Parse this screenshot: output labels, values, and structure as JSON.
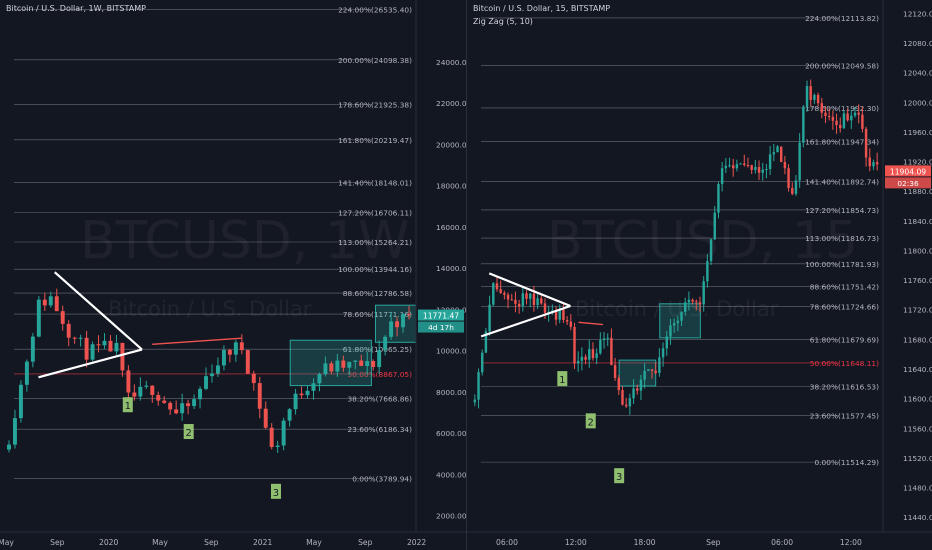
{
  "chart_data": [
    {
      "type": "candlestick",
      "title": "Bitcoin / U.S. Dollar, 1W, BITSTAMP",
      "watermark": "BTCUSD, 1W",
      "watermark_sub": "Bitcoin / U.S. Dollar",
      "yaxis": {
        "ticks": [
          "2000.00",
          "4000.00",
          "6000.00",
          "8000.00",
          "10000.00",
          "12000.00",
          "14000.00",
          "16000.00",
          "18000.00",
          "20000.00",
          "22000.00",
          "24000.00"
        ],
        "tick_values": [
          2000,
          4000,
          6000,
          8000,
          10000,
          12000,
          14000,
          16000,
          18000,
          20000,
          22000,
          24000
        ],
        "range": [
          1200,
          27000
        ]
      },
      "xaxis": {
        "ticks": [
          "May",
          "Sep",
          "2020",
          "May",
          "Sep",
          "2021",
          "May",
          "Sep",
          "2022"
        ]
      },
      "fib_levels": [
        {
          "label": "224.00%(26535.40)",
          "value": 26535.4,
          "color": "#b2b5be"
        },
        {
          "label": "200.00%(24098.38)",
          "value": 24098.38,
          "color": "#b2b5be"
        },
        {
          "label": "178.60%(21925.38)",
          "value": 21925.38,
          "color": "#b2b5be"
        },
        {
          "label": "161.80%(20219.47)",
          "value": 20219.47,
          "color": "#b2b5be"
        },
        {
          "label": "141.40%(18148.01)",
          "value": 18148.01,
          "color": "#b2b5be"
        },
        {
          "label": "127.20%(16706.11)",
          "value": 16706.11,
          "color": "#b2b5be"
        },
        {
          "label": "113.00%(15264.21)",
          "value": 15264.21,
          "color": "#b2b5be"
        },
        {
          "label": "100.00%(13944.16)",
          "value": 13944.16,
          "color": "#b2b5be"
        },
        {
          "label": "88.60%(12786.58)",
          "value": 12786.58,
          "color": "#b2b5be"
        },
        {
          "label": "78.60%(11771.16)",
          "value": 11771.16,
          "color": "#b2b5be"
        },
        {
          "label": "61.80%(10065.25)",
          "value": 10065.25,
          "color": "#b2b5be"
        },
        {
          "label": "50.00%(8867.05)",
          "value": 8867.05,
          "color": "#f23645"
        },
        {
          "label": "38.20%(7668.86)",
          "value": 7668.86,
          "color": "#b2b5be"
        },
        {
          "label": "23.60%(6186.34)",
          "value": 6186.34,
          "color": "#b2b5be"
        },
        {
          "label": "0.00%(3789.94)",
          "value": 3789.94,
          "color": "#b2b5be"
        }
      ],
      "price_label": "11771.47",
      "countdown_label": "4d 17h",
      "wave_labels": [
        "1",
        "2",
        "3"
      ],
      "wave_positions": [
        [
          0.3,
          7300
        ],
        [
          0.45,
          6000
        ],
        [
          0.665,
          3100
        ]
      ],
      "triangle": [
        [
          0.12,
          13800
        ],
        [
          0.08,
          8700
        ],
        [
          0.335,
          10050
        ]
      ],
      "resistance_line": [
        [
          0.36,
          10300
        ],
        [
          0.58,
          10600
        ]
      ],
      "boxes": [
        [
          0.7,
          0.9,
          8300,
          10500
        ],
        [
          0.91,
          1.07,
          10400,
          12200
        ]
      ],
      "candles": {
        "seed": 11,
        "path": [
          [
            0,
            5200
          ],
          [
            0.04,
            8600
          ],
          [
            0.08,
            12200
          ],
          [
            0.11,
            12600
          ],
          [
            0.16,
            10800
          ],
          [
            0.2,
            9900
          ],
          [
            0.27,
            10200
          ],
          [
            0.3,
            7600
          ],
          [
            0.36,
            8200
          ],
          [
            0.42,
            6900
          ],
          [
            0.46,
            7400
          ],
          [
            0.5,
            9000
          ],
          [
            0.55,
            10000
          ],
          [
            0.58,
            10200
          ],
          [
            0.61,
            8400
          ],
          [
            0.635,
            6600
          ],
          [
            0.66,
            4800
          ],
          [
            0.68,
            6500
          ],
          [
            0.72,
            7900
          ],
          [
            0.78,
            9100
          ],
          [
            0.86,
            9300
          ],
          [
            0.9,
            9200
          ],
          [
            0.95,
            11400
          ],
          [
            1.0,
            11600
          ]
        ],
        "count": 68,
        "x_range": [
          0.0,
          1.0
        ]
      },
      "colors": {
        "up": "#26a69a",
        "down": "#ef5350",
        "bg": "#131722",
        "grid": "#2a2e39",
        "text": "#b2b5be",
        "box": "#2ec4b6",
        "triangle": "#ffffff",
        "resistance": "#ef5350",
        "label_bg": "#8fbf6f"
      }
    },
    {
      "type": "candlestick",
      "title": "Bitcoin / U.S. Dollar, 15, BITSTAMP",
      "indicator": "Zig Zag (5, 10)",
      "watermark": "BTCUSD, 15",
      "watermark_sub": "Bitcoin / U.S. Dollar",
      "yaxis": {
        "ticks": [
          "11440.00",
          "11480.00",
          "11520.00",
          "11560.00",
          "11600.00",
          "11640.00",
          "11680.00",
          "11720.00",
          "11760.00",
          "11800.00",
          "11840.00",
          "11880.00",
          "11920.00",
          "11960.00",
          "12000.00",
          "12040.00",
          "12080.00",
          "12120.00"
        ],
        "tick_values": [
          11440,
          11480,
          11520,
          11560,
          11600,
          11640,
          11680,
          11720,
          11760,
          11800,
          11840,
          11880,
          11920,
          11960,
          12000,
          12040,
          12080,
          12120
        ],
        "range": [
          11420,
          12138
        ]
      },
      "xaxis": {
        "ticks": [
          "06:00",
          "12:00",
          "18:00",
          "Sep",
          "06:00",
          "12:00"
        ]
      },
      "fib_levels": [
        {
          "label": "224.00%(12113.82)",
          "value": 12113.82,
          "color": "#b2b5be"
        },
        {
          "label": "200.00%(12049.58)",
          "value": 12049.58,
          "color": "#b2b5be"
        },
        {
          "label": "178.60%(11992.30)",
          "value": 11992.3,
          "color": "#b2b5be"
        },
        {
          "label": "161.80%(11947.34)",
          "value": 11947.34,
          "color": "#b2b5be"
        },
        {
          "label": "141.40%(11892.74)",
          "value": 11892.74,
          "color": "#b2b5be"
        },
        {
          "label": "127.20%(11854.73)",
          "value": 11854.73,
          "color": "#b2b5be"
        },
        {
          "label": "113.00%(11816.73)",
          "value": 11816.73,
          "color": "#b2b5be"
        },
        {
          "label": "100.00%(11781.93)",
          "value": 11781.93,
          "color": "#b2b5be"
        },
        {
          "label": "88.60%(11751.42)",
          "value": 11751.42,
          "color": "#b2b5be"
        },
        {
          "label": "78.60%(11724.66)",
          "value": 11724.66,
          "color": "#b2b5be"
        },
        {
          "label": "61.80%(11679.69)",
          "value": 11679.69,
          "color": "#b2b5be"
        },
        {
          "label": "50.00%(11648.11)",
          "value": 11648.11,
          "color": "#f23645"
        },
        {
          "label": "38.20%(11616.53)",
          "value": 11616.53,
          "color": "#b2b5be"
        },
        {
          "label": "23.60%(11577.45)",
          "value": 11577.45,
          "color": "#b2b5be"
        },
        {
          "label": "0.00%(11514.29)",
          "value": 11514.29,
          "color": "#b2b5be"
        }
      ],
      "price_label": "11904.09",
      "countdown_label": "02:36",
      "wave_labels": [
        "1",
        "2",
        "3"
      ],
      "wave_positions": [
        [
          0.22,
          11625
        ],
        [
          0.29,
          11568
        ],
        [
          0.36,
          11494
        ]
      ],
      "triangle": [
        [
          0.04,
          11769
        ],
        [
          0.02,
          11684
        ],
        [
          0.24,
          11725
        ]
      ],
      "resistance_line": [
        [
          0.26,
          11703
        ],
        [
          0.32,
          11700
        ]
      ],
      "boxes": [
        [
          0.36,
          0.45,
          11617,
          11652
        ],
        [
          0.46,
          0.56,
          11682,
          11728
        ]
      ],
      "candles": {
        "seed": 27,
        "path": [
          [
            0,
            11595
          ],
          [
            0.03,
            11690
          ],
          [
            0.05,
            11760
          ],
          [
            0.08,
            11730
          ],
          [
            0.13,
            11735
          ],
          [
            0.2,
            11715
          ],
          [
            0.24,
            11700
          ],
          [
            0.25,
            11650
          ],
          [
            0.29,
            11660
          ],
          [
            0.31,
            11670
          ],
          [
            0.33,
            11690
          ],
          [
            0.35,
            11620
          ],
          [
            0.37,
            11590
          ],
          [
            0.41,
            11625
          ],
          [
            0.45,
            11640
          ],
          [
            0.48,
            11690
          ],
          [
            0.52,
            11720
          ],
          [
            0.56,
            11735
          ],
          [
            0.58,
            11800
          ],
          [
            0.61,
            11900
          ],
          [
            0.66,
            11915
          ],
          [
            0.71,
            11915
          ],
          [
            0.75,
            11930
          ],
          [
            0.79,
            11870
          ],
          [
            0.82,
            12020
          ],
          [
            0.84,
            12000
          ],
          [
            0.88,
            11985
          ],
          [
            0.9,
            11970
          ],
          [
            0.94,
            11995
          ],
          [
            0.97,
            11930
          ],
          [
            1.0,
            11904
          ]
        ],
        "count": 110,
        "x_range": [
          0.0,
          1.0
        ]
      },
      "colors": {
        "up": "#26a69a",
        "down": "#ef5350",
        "bg": "#131722",
        "grid": "#2a2e39",
        "text": "#b2b5be",
        "box": "#2ec4b6",
        "triangle": "#ffffff",
        "resistance": "#ef5350",
        "label_bg": "#8fbf6f"
      }
    }
  ]
}
